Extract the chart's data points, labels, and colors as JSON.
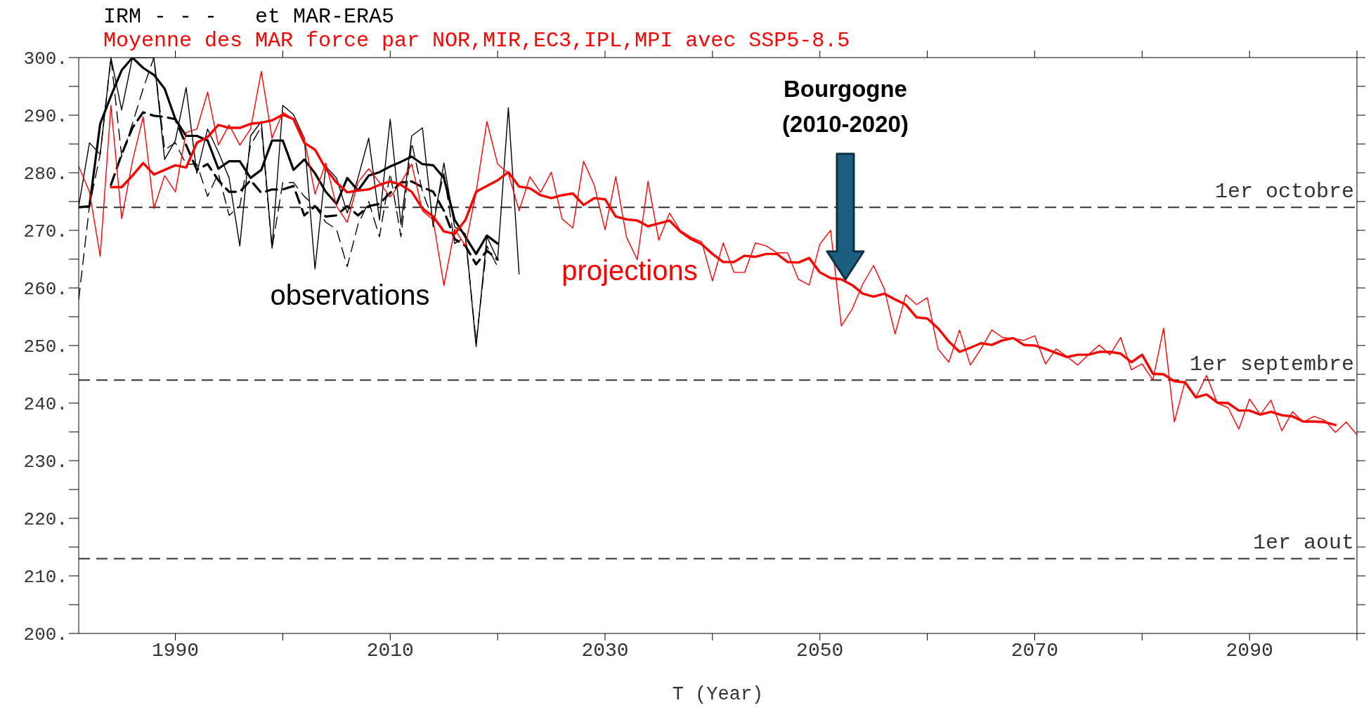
{
  "chart_data": {
    "type": "line",
    "title": "IRM - - -   et MAR-ERA5",
    "subtitle": "Moyenne des MAR force par NOR,MIR,EC3,IPL,MPI avec SSP5-8.5",
    "xlabel": "T (Year)",
    "xlim": [
      1981,
      2100
    ],
    "ylim": [
      200,
      300
    ],
    "xticks": [
      1990,
      {
        "value": 2000,
        "label": null
      },
      2010,
      {
        "value": 2020,
        "label": null
      },
      2030,
      {
        "value": 2040,
        "label": null
      },
      2050,
      {
        "value": 2060,
        "label": null
      },
      2070,
      {
        "value": 2080,
        "label": null
      },
      2090,
      {
        "value": 2100,
        "label": null
      }
    ],
    "yticks": [
      {
        "value": 200,
        "label": "200."
      },
      {
        "value": 205,
        "label": null
      },
      {
        "value": 210,
        "label": "210."
      },
      {
        "value": 215,
        "label": null
      },
      {
        "value": 220,
        "label": "220."
      },
      {
        "value": 225,
        "label": null
      },
      {
        "value": 230,
        "label": "230."
      },
      {
        "value": 235,
        "label": null
      },
      {
        "value": 240,
        "label": "240."
      },
      {
        "value": 245,
        "label": null
      },
      {
        "value": 250,
        "label": "250."
      },
      {
        "value": 255,
        "label": null
      },
      {
        "value": 260,
        "label": "260."
      },
      {
        "value": 265,
        "label": null
      },
      {
        "value": 270,
        "label": "270."
      },
      {
        "value": 275,
        "label": null
      },
      {
        "value": 280,
        "label": "280."
      },
      {
        "value": 285,
        "label": null
      },
      {
        "value": 290,
        "label": "290."
      },
      {
        "value": 295,
        "label": null
      },
      {
        "value": 300,
        "label": "300."
      }
    ],
    "marker": "none",
    "x": [
      1981,
      1982,
      1983,
      1984,
      1985,
      1986,
      1987,
      1988,
      1989,
      1990,
      1991,
      1992,
      1993,
      1994,
      1995,
      1996,
      1997,
      1998,
      1999,
      2000,
      2001,
      2002,
      2003,
      2004,
      2005,
      2006,
      2007,
      2008,
      2009,
      2010,
      2011,
      2012,
      2013,
      2014,
      2015,
      2016,
      2017,
      2018,
      2019,
      2020,
      2021,
      2022,
      2023,
      2024,
      2025,
      2026,
      2027,
      2028,
      2029,
      2030,
      2031,
      2032,
      2033,
      2034,
      2035,
      2036,
      2037,
      2038,
      2039,
      2040,
      2041,
      2042,
      2043,
      2044,
      2045,
      2046,
      2047,
      2048,
      2049,
      2050,
      2051,
      2052,
      2053,
      2054,
      2055,
      2056,
      2057,
      2058,
      2059,
      2060,
      2061,
      2062,
      2063,
      2064,
      2065,
      2066,
      2067,
      2068,
      2069,
      2070,
      2071,
      2072,
      2073,
      2074,
      2075,
      2076,
      2077,
      2078,
      2079,
      2080,
      2081,
      2082,
      2083,
      2084,
      2085,
      2086,
      2087,
      2088,
      2089,
      2090,
      2091,
      2092,
      2093,
      2094,
      2095,
      2096,
      2097,
      2098,
      2099,
      2100
    ],
    "series": [
      {
        "color": "#000000",
        "line_style": "dashed",
        "x": [
          1981,
          1982,
          1983,
          1984,
          1985,
          1986,
          1987,
          1988,
          1989,
          1990,
          1991,
          1992,
          1993,
          1994,
          1995,
          1996,
          1997,
          1998,
          1999,
          2000,
          2001,
          2002,
          2003,
          2004,
          2005,
          2006,
          2007,
          2008,
          2009,
          2010,
          2011,
          2012,
          2013,
          2014,
          2015,
          2016,
          2017,
          2018,
          2019,
          2020
        ],
        "values": [
          258,
          274.2,
          283.2,
          300,
          282.8,
          288.5,
          294.6,
          300,
          284,
          285.2,
          281.5,
          281.5,
          275.9,
          279.9,
          272.6,
          274.2,
          284.8,
          288,
          266.9,
          278.3,
          278.3,
          275.9,
          274.2,
          271.4,
          270.2,
          263.7,
          271,
          275,
          268.9,
          279.9,
          268.9,
          285.2,
          276.7,
          271.8,
          279.9,
          267.7,
          268.9,
          250.6,
          267.3,
          263.7
        ]
      },
      {
        "color": "#000000",
        "line_style": "dashed",
        "x": [
          1984,
          1985,
          1986,
          1987,
          1988,
          1989,
          1990,
          1991,
          1992,
          1993,
          1994,
          1995,
          1996,
          1997,
          1998,
          1999,
          2000,
          2001,
          2002,
          2003,
          2004,
          2005,
          2006,
          2007,
          2008,
          2009,
          2010,
          2011,
          2012,
          2013,
          2014,
          2015,
          2016,
          2017,
          2018,
          2019,
          2020
        ],
        "values": [
          277.9,
          283.2,
          287.8,
          290.5,
          289.9,
          289.7,
          289.3,
          284.8,
          280.5,
          281.5,
          278.7,
          276.7,
          276.7,
          278.7,
          276.5,
          277.1,
          277.1,
          277.7,
          272.6,
          274.2,
          272.4,
          272.6,
          274.2,
          272.6,
          274.2,
          274.6,
          276.5,
          278.3,
          278.5,
          277.5,
          276.7,
          273.4,
          268.5,
          267.3,
          264.1,
          266.5,
          264.9
        ]
      },
      {
        "color": "#000000",
        "line_style": "solid",
        "x": [
          1981,
          1982,
          1983,
          1984,
          1985,
          1986,
          1987,
          1988,
          1989,
          1990,
          1991,
          1992,
          1993,
          1994,
          1995,
          1996,
          1997,
          1998,
          1999,
          2000,
          2001,
          2002,
          2003,
          2004,
          2005,
          2006,
          2007,
          2008,
          2009,
          2010,
          2011,
          2012,
          2013,
          2014,
          2015,
          2016,
          2017,
          2018,
          2019,
          2020,
          2021,
          2022
        ],
        "values": [
          274.2,
          285.2,
          283.2,
          300,
          290.9,
          300,
          300,
          300,
          282.3,
          285.6,
          294.8,
          279.9,
          287.6,
          283.6,
          279.1,
          267.3,
          286.4,
          288.9,
          266.9,
          291.7,
          290.1,
          286,
          263.3,
          281.1,
          279.1,
          273,
          279.1,
          286,
          271.8,
          289.3,
          271,
          286.4,
          287.8,
          270.6,
          281.7,
          270.6,
          269.4,
          249.8,
          268.9,
          264.9,
          291.3,
          262.4
        ]
      },
      {
        "color": "#000000",
        "line_style": "solid",
        "x": [
          1981,
          1982,
          1983,
          1984,
          1985,
          1986,
          1987,
          1988,
          1989,
          1990,
          1991,
          1992,
          1993,
          1994,
          1995,
          1996,
          1997,
          1998,
          1999,
          2000,
          2001,
          2002,
          2003,
          2004,
          2005,
          2006,
          2007,
          2008,
          2009,
          2010,
          2011,
          2012,
          2013,
          2014,
          2015,
          2016,
          2017,
          2018,
          2019,
          2020
        ],
        "values": [
          274,
          274.2,
          288.5,
          293.3,
          297.8,
          300,
          298.2,
          297,
          294.6,
          289.3,
          286.4,
          286.4,
          285.6,
          280.7,
          282,
          282,
          279.1,
          280.5,
          285.6,
          285.6,
          280.5,
          282.3,
          279.9,
          276.7,
          274.6,
          279.1,
          276.9,
          279.5,
          280.1,
          281.1,
          281.9,
          282.8,
          281.5,
          281.3,
          279.1,
          271.8,
          268.9,
          265.9,
          269.1,
          267.7
        ]
      },
      {
        "color": "#ff0000",
        "line_style": "solid",
        "values": [
          281.1,
          276.7,
          265.5,
          291.7,
          272,
          282,
          289.7,
          273.8,
          279.5,
          276.7,
          287,
          287.6,
          294,
          284.8,
          288.3,
          284.8,
          287.6,
          297.6,
          286,
          290.5,
          289.3,
          286,
          276.3,
          281.7,
          274.2,
          271.4,
          278.3,
          280.7,
          278.3,
          275.8,
          278.3,
          281.5,
          273.4,
          271.8,
          260.4,
          270.2,
          267.3,
          276.7,
          288.9,
          281.5,
          279.9,
          273.4,
          279.3,
          276.6,
          280.1,
          272,
          270.4,
          282,
          277.8,
          270.1,
          279.3,
          268.8,
          264.9,
          278.5,
          268.3,
          273,
          270,
          268.8,
          268,
          261.2,
          267.8,
          262.7,
          262.7,
          267.8,
          267.3,
          266.1,
          266.1,
          261.5,
          260.5,
          267.6,
          270,
          253.4,
          256.3,
          260.7,
          263.9,
          259.8,
          252,
          258.8,
          257.1,
          258.3,
          249.4,
          247.1,
          252.7,
          246.6,
          249.4,
          252.7,
          251.4,
          251.2,
          250.9,
          251.7,
          246.8,
          249.4,
          248.1,
          246.6,
          248.4,
          250.1,
          248.4,
          251.4,
          245.8,
          246.8,
          244,
          253,
          236.7,
          243.8,
          241,
          244.8,
          240,
          239.2,
          235.5,
          240.7,
          238,
          240.5,
          235.2,
          238.5,
          236.7,
          237.7,
          237,
          234.9,
          236.7,
          234.5
        ]
      },
      {
        "color": "#ff0000",
        "line_style": "solid",
        "values": [
          null,
          null,
          null,
          277.5,
          277.5,
          279.5,
          281.7,
          279.7,
          280.5,
          281.3,
          280.9,
          285.2,
          286.2,
          288.3,
          287.8,
          287.8,
          288.5,
          288.7,
          289.1,
          290.1,
          289.3,
          285.2,
          284,
          280.7,
          278.3,
          276.6,
          276.9,
          277.1,
          277.9,
          278.5,
          277.9,
          276.7,
          273.8,
          272.4,
          269.8,
          269.4,
          271.8,
          276.7,
          277.7,
          278.7,
          280.1,
          277.6,
          277.3,
          276.1,
          275.6,
          276.1,
          276.4,
          274.4,
          275.6,
          275.4,
          272.4,
          271.9,
          271.7,
          270.7,
          271.2,
          271.7,
          269.8,
          268.5,
          267.6,
          265.9,
          264.5,
          264.5,
          265.6,
          265.4,
          265.9,
          265.9,
          264.5,
          264.4,
          265.2,
          262.7,
          261.7,
          261.5,
          260.5,
          259,
          258.5,
          259,
          258,
          257.1,
          254.9,
          254.7,
          253,
          250.7,
          248.9,
          249.6,
          250.4,
          250.1,
          250.9,
          251.3,
          250.1,
          250,
          249.4,
          248.7,
          248,
          248.4,
          248.4,
          248.9,
          248.9,
          248.6,
          247.1,
          248.4,
          245.1,
          245,
          243.8,
          243.6,
          241,
          241.5,
          240.1,
          240,
          238.7,
          238.7,
          238,
          238.5,
          237.9,
          237.7,
          236.8,
          236.8,
          236.7,
          236.2,
          null,
          null
        ]
      }
    ],
    "ref_lines": [
      {
        "axis": "y",
        "value": 274,
        "label": "1er octobre",
        "color": "#333333",
        "line_style": "dashed"
      },
      {
        "axis": "y",
        "value": 244,
        "label": "1er septembre",
        "color": "#333333",
        "line_style": "dashed"
      },
      {
        "axis": "y",
        "value": 213,
        "label": "1er aout",
        "color": "#333333",
        "line_style": "dashed"
      }
    ],
    "annotations": [
      "observations",
      "projections",
      "Bourgogne\n(2010-2020)"
    ]
  }
}
